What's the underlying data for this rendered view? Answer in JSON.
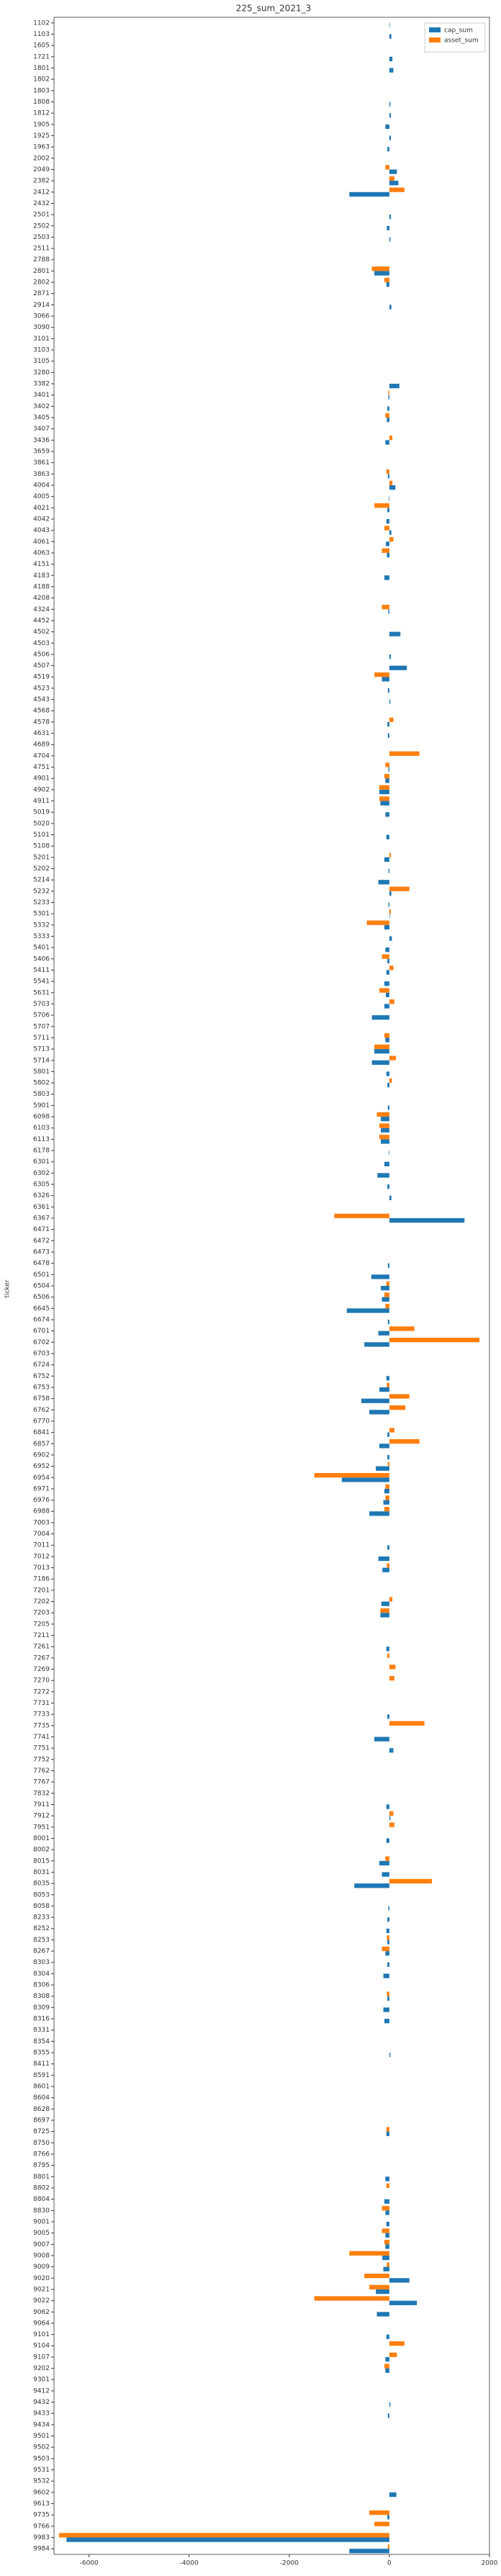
{
  "chart_data": {
    "type": "barh",
    "title": "225_sum_2021_3",
    "ylabel": "ticker",
    "categories": [
      "1102",
      "1103",
      "1605",
      "1721",
      "1801",
      "1802",
      "1803",
      "1808",
      "1812",
      "1905",
      "1925",
      "1963",
      "2002",
      "2049",
      "2382",
      "2412",
      "2432",
      "2501",
      "2502",
      "2503",
      "2511",
      "2788",
      "2801",
      "2802",
      "2871",
      "2914",
      "3066",
      "3090",
      "3101",
      "3103",
      "3105",
      "3280",
      "3382",
      "3401",
      "3402",
      "3405",
      "3407",
      "3436",
      "3659",
      "3861",
      "3863",
      "4004",
      "4005",
      "4021",
      "4042",
      "4043",
      "4061",
      "4063",
      "4151",
      "4183",
      "4188",
      "4208",
      "4324",
      "4452",
      "4502",
      "4503",
      "4506",
      "4507",
      "4519",
      "4523",
      "4543",
      "4568",
      "4578",
      "4631",
      "4689",
      "4704",
      "4751",
      "4901",
      "4902",
      "4911",
      "5019",
      "5020",
      "5101",
      "5108",
      "5201",
      "5202",
      "5214",
      "5232",
      "5233",
      "5301",
      "5332",
      "5333",
      "5401",
      "5406",
      "5411",
      "5541",
      "5631",
      "5703",
      "5706",
      "5707",
      "5711",
      "5713",
      "5714",
      "5801",
      "5802",
      "5803",
      "5901",
      "6098",
      "6103",
      "6113",
      "6178",
      "6301",
      "6302",
      "6305",
      "6326",
      "6361",
      "6367",
      "6471",
      "6472",
      "6473",
      "6478",
      "6501",
      "6504",
      "6506",
      "6645",
      "6674",
      "6701",
      "6702",
      "6703",
      "6724",
      "6752",
      "6753",
      "6758",
      "6762",
      "6770",
      "6841",
      "6857",
      "6902",
      "6952",
      "6954",
      "6971",
      "6976",
      "6988",
      "7003",
      "7004",
      "7011",
      "7012",
      "7013",
      "7186",
      "7201",
      "7202",
      "7203",
      "7205",
      "7211",
      "7261",
      "7267",
      "7269",
      "7270",
      "7272",
      "7731",
      "7733",
      "7735",
      "7741",
      "7751",
      "7752",
      "7762",
      "7767",
      "7832",
      "7911",
      "7912",
      "7951",
      "8001",
      "8002",
      "8015",
      "8031",
      "8035",
      "8053",
      "8058",
      "8233",
      "8252",
      "8253",
      "8267",
      "8303",
      "8304",
      "8306",
      "8308",
      "8309",
      "8316",
      "8331",
      "8354",
      "8355",
      "8411",
      "8591",
      "8601",
      "8604",
      "8628",
      "8697",
      "8725",
      "8750",
      "8766",
      "8795",
      "8801",
      "8802",
      "8804",
      "8830",
      "9001",
      "9005",
      "9007",
      "9008",
      "9009",
      "9020",
      "9021",
      "9022",
      "9062",
      "9064",
      "9101",
      "9104",
      "9107",
      "9202",
      "9301",
      "9412",
      "9432",
      "9433",
      "9434",
      "9501",
      "9502",
      "9503",
      "9531",
      "9532",
      "9602",
      "9613",
      "9735",
      "9766",
      "9983",
      "9984"
    ],
    "series": [
      {
        "name": "cap_sum",
        "color": "#1f77b4",
        "values": [
          10,
          40,
          0,
          60,
          80,
          0,
          0,
          20,
          30,
          -80,
          30,
          -40,
          0,
          150,
          180,
          -800,
          0,
          30,
          -50,
          20,
          0,
          0,
          -300,
          -60,
          0,
          40,
          0,
          0,
          0,
          0,
          0,
          0,
          200,
          -20,
          -40,
          -50,
          0,
          -80,
          0,
          0,
          -30,
          120,
          -10,
          -40,
          -60,
          40,
          -70,
          -50,
          0,
          -100,
          0,
          0,
          -20,
          0,
          220,
          0,
          30,
          350,
          -150,
          -30,
          20,
          0,
          -40,
          -30,
          0,
          0,
          -20,
          -80,
          -200,
          -180,
          -80,
          0,
          -60,
          0,
          -100,
          -20,
          -220,
          40,
          -20,
          10,
          -100,
          50,
          -80,
          -40,
          -60,
          -100,
          -70,
          -100,
          -350,
          0,
          -80,
          -300,
          -350,
          -60,
          -40,
          0,
          -30,
          -170,
          -170,
          -170,
          -10,
          -100,
          -240,
          -40,
          40,
          0,
          1500,
          0,
          0,
          0,
          -30,
          -360,
          -170,
          -150,
          -850,
          -30,
          -220,
          -500,
          0,
          0,
          -60,
          -200,
          -560,
          -400,
          0,
          -40,
          -200,
          -40,
          -270,
          -950,
          -100,
          -120,
          -400,
          0,
          0,
          -40,
          -220,
          -140,
          0,
          0,
          -160,
          -180,
          0,
          0,
          -60,
          0,
          0,
          0,
          0,
          0,
          -40,
          0,
          -300,
          80,
          0,
          0,
          0,
          0,
          -60,
          20,
          0,
          -60,
          0,
          -200,
          -150,
          -700,
          0,
          -20,
          -40,
          -60,
          -40,
          -80,
          -40,
          -120,
          0,
          -40,
          -120,
          -100,
          0,
          0,
          20,
          0,
          0,
          0,
          0,
          0,
          0,
          -60,
          0,
          0,
          0,
          -80,
          0,
          -100,
          -80,
          -60,
          -80,
          -80,
          -140,
          -120,
          400,
          -270,
          550,
          -250,
          0,
          -60,
          0,
          -80,
          -80,
          0,
          0,
          20,
          -30,
          0,
          0,
          0,
          0,
          0,
          0,
          140,
          0,
          -40,
          0,
          -6450,
          -800
        ]
      },
      {
        "name": "asset_sum",
        "color": "#ff7f0e",
        "values": [
          0,
          0,
          0,
          0,
          0,
          0,
          0,
          0,
          0,
          0,
          0,
          0,
          0,
          -80,
          100,
          300,
          0,
          0,
          0,
          0,
          0,
          0,
          -350,
          -100,
          0,
          0,
          0,
          0,
          0,
          0,
          0,
          0,
          0,
          -20,
          0,
          -80,
          0,
          60,
          0,
          0,
          -60,
          60,
          0,
          -300,
          0,
          -100,
          80,
          -150,
          0,
          0,
          0,
          0,
          -150,
          0,
          0,
          0,
          0,
          0,
          -300,
          0,
          0,
          0,
          80,
          0,
          0,
          600,
          -80,
          -100,
          -200,
          -200,
          0,
          0,
          0,
          0,
          30,
          0,
          0,
          400,
          0,
          30,
          -450,
          0,
          0,
          -150,
          80,
          0,
          -200,
          100,
          0,
          0,
          -100,
          -300,
          130,
          0,
          50,
          0,
          0,
          -250,
          -200,
          -200,
          0,
          0,
          0,
          0,
          0,
          0,
          -1100,
          0,
          0,
          0,
          0,
          0,
          -60,
          -100,
          -80,
          0,
          500,
          1800,
          0,
          0,
          0,
          -50,
          400,
          320,
          0,
          100,
          600,
          0,
          -30,
          -1500,
          -80,
          -80,
          -100,
          0,
          0,
          0,
          0,
          -50,
          0,
          0,
          60,
          -180,
          0,
          0,
          0,
          -40,
          120,
          100,
          0,
          0,
          0,
          700,
          0,
          0,
          0,
          0,
          0,
          0,
          0,
          80,
          100,
          0,
          0,
          -80,
          0,
          850,
          0,
          0,
          0,
          0,
          -50,
          -150,
          0,
          0,
          0,
          -50,
          0,
          0,
          0,
          0,
          0,
          0,
          0,
          0,
          0,
          0,
          0,
          -60,
          0,
          0,
          0,
          0,
          -60,
          0,
          -150,
          0,
          -150,
          -100,
          -800,
          -50,
          -500,
          -400,
          -1500,
          0,
          0,
          0,
          300,
          150,
          -100,
          0,
          0,
          0,
          0,
          0,
          0,
          0,
          0,
          0,
          0,
          0,
          0,
          -400,
          -300,
          -6600,
          -30
        ]
      }
    ],
    "xlim": [
      -6700,
      2000
    ],
    "xticks": [
      -6000,
      -4000,
      -2000,
      0,
      2000
    ],
    "legend": "upper right"
  }
}
